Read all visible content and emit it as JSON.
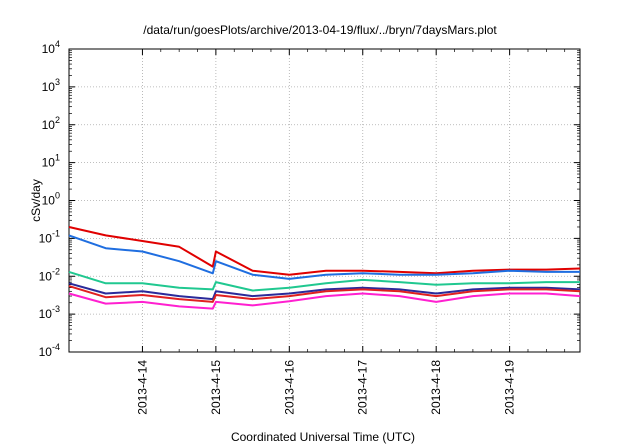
{
  "chart_data": {
    "type": "line",
    "title": "/data/run/goesPlots/archive/2013-04-19/flux/../bryn/7daysMars.plot",
    "xlabel": "Coordinated Universal Time (UTC)",
    "ylabel": "cSv/day",
    "yscale": "log",
    "ylim": [
      0.0001,
      10000
    ],
    "y_ticks": [
      {
        "base": "10",
        "exp": "4"
      },
      {
        "base": "10",
        "exp": "3"
      },
      {
        "base": "10",
        "exp": "2"
      },
      {
        "base": "10",
        "exp": "1"
      },
      {
        "base": "10",
        "exp": "0"
      },
      {
        "base": "10",
        "exp": "-1"
      },
      {
        "base": "10",
        "exp": "-2"
      },
      {
        "base": "10",
        "exp": "-3"
      },
      {
        "base": "10",
        "exp": "-4"
      }
    ],
    "x_range": [
      "2013-04-13T00:00",
      "2013-04-19T23:00"
    ],
    "x_ticks": [
      "2013-4-14",
      "2013-4-15",
      "2013-4-16",
      "2013-4-17",
      "2013-4-18",
      "2013-4-19"
    ],
    "grid": true,
    "x": [
      "2013-04-13T00:00",
      "2013-04-13T12:00",
      "2013-04-14T00:00",
      "2013-04-14T12:00",
      "2013-04-14T23:00",
      "2013-04-15T00:00",
      "2013-04-15T12:00",
      "2013-04-16T00:00",
      "2013-04-16T12:00",
      "2013-04-17T00:00",
      "2013-04-17T12:00",
      "2013-04-18T00:00",
      "2013-04-18T12:00",
      "2013-04-19T00:00",
      "2013-04-19T12:00",
      "2013-04-19T23:00"
    ],
    "series": [
      {
        "color": "#e00000",
        "values": [
          0.2,
          0.12,
          0.085,
          0.06,
          0.018,
          0.045,
          0.014,
          0.011,
          0.014,
          0.014,
          0.013,
          0.012,
          0.014,
          0.015,
          0.015,
          0.016
        ]
      },
      {
        "color": "#1f6ee0",
        "values": [
          0.12,
          0.055,
          0.045,
          0.025,
          0.012,
          0.025,
          0.011,
          0.0085,
          0.011,
          0.012,
          0.011,
          0.011,
          0.012,
          0.014,
          0.013,
          0.013
        ]
      },
      {
        "color": "#20c890",
        "values": [
          0.013,
          0.0065,
          0.0065,
          0.005,
          0.0045,
          0.007,
          0.0042,
          0.005,
          0.0065,
          0.008,
          0.007,
          0.006,
          0.0065,
          0.0065,
          0.007,
          0.007
        ]
      },
      {
        "color": "#2a2a9a",
        "values": [
          0.0065,
          0.0035,
          0.004,
          0.003,
          0.0025,
          0.004,
          0.003,
          0.0035,
          0.0045,
          0.005,
          0.0045,
          0.0035,
          0.0045,
          0.005,
          0.005,
          0.0045
        ]
      },
      {
        "color": "#e02020",
        "values": [
          0.0055,
          0.0028,
          0.0032,
          0.0025,
          0.0021,
          0.0032,
          0.0025,
          0.003,
          0.004,
          0.0045,
          0.004,
          0.003,
          0.004,
          0.0045,
          0.0045,
          0.004
        ]
      },
      {
        "color": "#ff20d0",
        "values": [
          0.0035,
          0.0019,
          0.0021,
          0.0016,
          0.0014,
          0.0021,
          0.0017,
          0.0022,
          0.003,
          0.0035,
          0.003,
          0.0021,
          0.003,
          0.0035,
          0.0035,
          0.003
        ]
      }
    ]
  }
}
